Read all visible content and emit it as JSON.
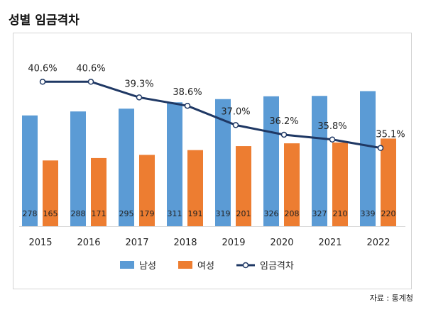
{
  "page": {
    "title": "성별 임금격차",
    "source": "자료 : 통계청"
  },
  "chart_data": {
    "type": "bar",
    "categories": [
      "2015",
      "2016",
      "2017",
      "2018",
      "2019",
      "2020",
      "2021",
      "2022"
    ],
    "series": [
      {
        "name": "남성",
        "kind": "bar",
        "color": "#5b9bd5",
        "values": [
          278,
          288,
          295,
          311,
          319,
          326,
          327,
          339
        ]
      },
      {
        "name": "여성",
        "kind": "bar",
        "color": "#ed7d31",
        "values": [
          165,
          171,
          179,
          191,
          201,
          208,
          210,
          220
        ]
      },
      {
        "name": "임금격차",
        "kind": "line",
        "color": "#1f3864",
        "unit": "%",
        "values": [
          40.6,
          40.6,
          39.3,
          38.6,
          37.0,
          36.2,
          35.8,
          35.1
        ]
      }
    ],
    "bar_axis_range": [
      0,
      420
    ],
    "line_axis_range": [
      28.6,
      42.5
    ],
    "legend_position": "bottom",
    "grid": false
  }
}
